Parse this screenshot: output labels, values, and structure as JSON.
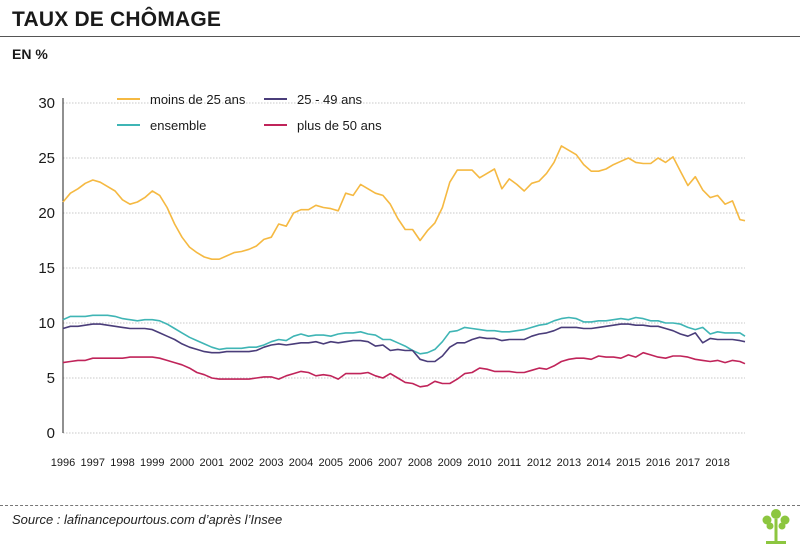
{
  "header": {
    "title": "TAUX DE CHÔMAGE",
    "unit": "EN %"
  },
  "footer": {
    "source": "Source : lafinancepourtous.com d’après l’Insee"
  },
  "colors": {
    "youth": "#f5b942",
    "ensemble": "#3fb5b5",
    "prime": "#4a3d7a",
    "senior": "#c0245a",
    "grid": "#c8c8c8",
    "logo": "#8cc63f"
  },
  "chart_data": {
    "type": "line",
    "title": "TAUX DE CHÔMAGE",
    "ylabel": "EN %",
    "xlabel": "",
    "ylim": [
      0,
      30
    ],
    "xlim": [
      1996,
      2018.92
    ],
    "yticks": [
      0,
      5,
      10,
      15,
      20,
      25,
      30
    ],
    "xticks": [
      "1996",
      "1997",
      "1998",
      "1999",
      "2000",
      "2001",
      "2002",
      "2003",
      "2004",
      "2005",
      "2006",
      "2007",
      "2008",
      "2009",
      "2010",
      "2011",
      "2012",
      "2013",
      "2014",
      "2015",
      "2016",
      "2017",
      "2018"
    ],
    "legend": "top-left",
    "series": [
      {
        "name": "moins de 25 ans",
        "color": "#f5b942",
        "x": [
          1996,
          1996.25,
          1996.5,
          1996.75,
          1997,
          1997.25,
          1997.5,
          1997.75,
          1998,
          1998.25,
          1998.5,
          1998.75,
          1999,
          1999.25,
          1999.5,
          1999.75,
          2000,
          2000.25,
          2000.5,
          2000.75,
          2001,
          2001.25,
          2001.5,
          2001.75,
          2002,
          2002.25,
          2002.5,
          2002.75,
          2003,
          2003.25,
          2003.5,
          2003.75,
          2004,
          2004.25,
          2004.5,
          2004.75,
          2005,
          2005.25,
          2005.5,
          2005.75,
          2006,
          2006.25,
          2006.5,
          2006.75,
          2007,
          2007.25,
          2007.5,
          2007.75,
          2008,
          2008.25,
          2008.5,
          2008.75,
          2009,
          2009.25,
          2009.5,
          2009.75,
          2010,
          2010.25,
          2010.5,
          2010.75,
          2011,
          2011.25,
          2011.5,
          2011.75,
          2012,
          2012.25,
          2012.5,
          2012.75,
          2013,
          2013.25,
          2013.5,
          2013.75,
          2014,
          2014.25,
          2014.5,
          2014.75,
          2015,
          2015.25,
          2015.5,
          2015.75,
          2016,
          2016.25,
          2016.5,
          2016.75,
          2017,
          2017.25,
          2017.5,
          2017.75,
          2018,
          2018.25,
          2018.5,
          2018.75,
          2018.92
        ],
        "values": [
          21.0,
          21.8,
          22.2,
          22.7,
          23.0,
          22.8,
          22.4,
          22.0,
          21.2,
          20.8,
          21.0,
          21.4,
          22.0,
          21.6,
          20.5,
          19.0,
          17.8,
          16.9,
          16.4,
          16.0,
          15.8,
          15.8,
          16.1,
          16.4,
          16.5,
          16.7,
          17.0,
          17.6,
          17.8,
          19.0,
          18.8,
          20.0,
          20.3,
          20.3,
          20.7,
          20.5,
          20.4,
          20.2,
          21.8,
          21.6,
          22.6,
          22.2,
          21.8,
          21.6,
          20.8,
          19.5,
          18.5,
          18.5,
          17.5,
          18.4,
          19.1,
          20.5,
          22.8,
          23.9,
          23.9,
          23.9,
          23.2,
          23.6,
          24.0,
          22.2,
          23.1,
          22.6,
          22.0,
          22.7,
          22.9,
          23.6,
          24.6,
          26.1,
          25.7,
          25.3,
          24.4,
          23.8,
          23.8,
          24.0,
          24.4,
          24.7,
          25.0,
          24.6,
          24.5,
          24.5,
          25.0,
          24.6,
          25.1,
          23.8,
          22.5,
          23.3,
          22.1,
          21.4,
          21.6,
          20.8,
          21.1,
          19.4,
          19.3
        ]
      },
      {
        "name": "ensemble",
        "color": "#3fb5b5",
        "x": [
          1996,
          1996.25,
          1996.5,
          1996.75,
          1997,
          1997.25,
          1997.5,
          1997.75,
          1998,
          1998.25,
          1998.5,
          1998.75,
          1999,
          1999.25,
          1999.5,
          1999.75,
          2000,
          2000.25,
          2000.5,
          2000.75,
          2001,
          2001.25,
          2001.5,
          2001.75,
          2002,
          2002.25,
          2002.5,
          2002.75,
          2003,
          2003.25,
          2003.5,
          2003.75,
          2004,
          2004.25,
          2004.5,
          2004.75,
          2005,
          2005.25,
          2005.5,
          2005.75,
          2006,
          2006.25,
          2006.5,
          2006.75,
          2007,
          2007.25,
          2007.5,
          2007.75,
          2008,
          2008.25,
          2008.5,
          2008.75,
          2009,
          2009.25,
          2009.5,
          2009.75,
          2010,
          2010.25,
          2010.5,
          2010.75,
          2011,
          2011.25,
          2011.5,
          2011.75,
          2012,
          2012.25,
          2012.5,
          2012.75,
          2013,
          2013.25,
          2013.5,
          2013.75,
          2014,
          2014.25,
          2014.5,
          2014.75,
          2015,
          2015.25,
          2015.5,
          2015.75,
          2016,
          2016.25,
          2016.5,
          2016.75,
          2017,
          2017.25,
          2017.5,
          2017.75,
          2018,
          2018.25,
          2018.5,
          2018.75,
          2018.92
        ],
        "values": [
          10.3,
          10.6,
          10.6,
          10.6,
          10.7,
          10.7,
          10.7,
          10.6,
          10.4,
          10.3,
          10.2,
          10.3,
          10.3,
          10.2,
          9.9,
          9.5,
          9.1,
          8.7,
          8.4,
          8.1,
          7.8,
          7.6,
          7.7,
          7.7,
          7.7,
          7.8,
          7.8,
          8.0,
          8.3,
          8.5,
          8.4,
          8.8,
          9.0,
          8.8,
          8.9,
          8.9,
          8.8,
          9.0,
          9.1,
          9.1,
          9.2,
          9.0,
          8.9,
          8.5,
          8.5,
          8.2,
          7.9,
          7.5,
          7.2,
          7.3,
          7.6,
          8.3,
          9.2,
          9.3,
          9.6,
          9.5,
          9.4,
          9.3,
          9.3,
          9.2,
          9.2,
          9.3,
          9.4,
          9.6,
          9.8,
          9.9,
          10.2,
          10.4,
          10.5,
          10.4,
          10.1,
          10.1,
          10.2,
          10.2,
          10.3,
          10.4,
          10.3,
          10.5,
          10.4,
          10.2,
          10.2,
          10.0,
          10.0,
          9.9,
          9.6,
          9.4,
          9.6,
          9.0,
          9.2,
          9.1,
          9.1,
          9.1,
          8.8
        ]
      },
      {
        "name": "25 - 49 ans",
        "color": "#4a3d7a",
        "x": [
          1996,
          1996.25,
          1996.5,
          1996.75,
          1997,
          1997.25,
          1997.5,
          1997.75,
          1998,
          1998.25,
          1998.5,
          1998.75,
          1999,
          1999.25,
          1999.5,
          1999.75,
          2000,
          2000.25,
          2000.5,
          2000.75,
          2001,
          2001.25,
          2001.5,
          2001.75,
          2002,
          2002.25,
          2002.5,
          2002.75,
          2003,
          2003.25,
          2003.5,
          2003.75,
          2004,
          2004.25,
          2004.5,
          2004.75,
          2005,
          2005.25,
          2005.5,
          2005.75,
          2006,
          2006.25,
          2006.5,
          2006.75,
          2007,
          2007.25,
          2007.5,
          2007.75,
          2008,
          2008.25,
          2008.5,
          2008.75,
          2009,
          2009.25,
          2009.5,
          2009.75,
          2010,
          2010.25,
          2010.5,
          2010.75,
          2011,
          2011.25,
          2011.5,
          2011.75,
          2012,
          2012.25,
          2012.5,
          2012.75,
          2013,
          2013.25,
          2013.5,
          2013.75,
          2014,
          2014.25,
          2014.5,
          2014.75,
          2015,
          2015.25,
          2015.5,
          2015.75,
          2016,
          2016.25,
          2016.5,
          2016.75,
          2017,
          2017.25,
          2017.5,
          2017.75,
          2018,
          2018.25,
          2018.5,
          2018.75,
          2018.92
        ],
        "values": [
          9.5,
          9.7,
          9.7,
          9.8,
          9.9,
          9.9,
          9.8,
          9.7,
          9.6,
          9.5,
          9.5,
          9.5,
          9.4,
          9.1,
          8.8,
          8.5,
          8.1,
          7.8,
          7.6,
          7.4,
          7.3,
          7.3,
          7.4,
          7.4,
          7.4,
          7.4,
          7.5,
          7.8,
          8.0,
          8.1,
          8.0,
          8.1,
          8.2,
          8.2,
          8.3,
          8.1,
          8.3,
          8.2,
          8.3,
          8.4,
          8.4,
          8.3,
          7.9,
          8.0,
          7.5,
          7.6,
          7.5,
          7.5,
          6.7,
          6.5,
          6.5,
          7.0,
          7.8,
          8.2,
          8.2,
          8.5,
          8.7,
          8.6,
          8.6,
          8.4,
          8.5,
          8.5,
          8.5,
          8.8,
          9.0,
          9.1,
          9.3,
          9.6,
          9.6,
          9.6,
          9.5,
          9.5,
          9.6,
          9.7,
          9.8,
          9.9,
          9.9,
          9.8,
          9.8,
          9.7,
          9.7,
          9.5,
          9.3,
          9.0,
          8.8,
          9.1,
          8.2,
          8.6,
          8.5,
          8.5,
          8.5,
          8.4,
          8.3
        ]
      },
      {
        "name": "plus de 50 ans",
        "color": "#c0245a",
        "x": [
          1996,
          1996.25,
          1996.5,
          1996.75,
          1997,
          1997.25,
          1997.5,
          1997.75,
          1998,
          1998.25,
          1998.5,
          1998.75,
          1999,
          1999.25,
          1999.5,
          1999.75,
          2000,
          2000.25,
          2000.5,
          2000.75,
          2001,
          2001.25,
          2001.5,
          2001.75,
          2002,
          2002.25,
          2002.5,
          2002.75,
          2003,
          2003.25,
          2003.5,
          2003.75,
          2004,
          2004.25,
          2004.5,
          2004.75,
          2005,
          2005.25,
          2005.5,
          2005.75,
          2006,
          2006.25,
          2006.5,
          2006.75,
          2007,
          2007.25,
          2007.5,
          2007.75,
          2008,
          2008.25,
          2008.5,
          2008.75,
          2009,
          2009.25,
          2009.5,
          2009.75,
          2010,
          2010.25,
          2010.5,
          2010.75,
          2011,
          2011.25,
          2011.5,
          2011.75,
          2012,
          2012.25,
          2012.5,
          2012.75,
          2013,
          2013.25,
          2013.5,
          2013.75,
          2014,
          2014.25,
          2014.5,
          2014.75,
          2015,
          2015.25,
          2015.5,
          2015.75,
          2016,
          2016.25,
          2016.5,
          2016.75,
          2017,
          2017.25,
          2017.5,
          2017.75,
          2018,
          2018.25,
          2018.5,
          2018.75,
          2018.92
        ],
        "values": [
          6.4,
          6.5,
          6.6,
          6.6,
          6.8,
          6.8,
          6.8,
          6.8,
          6.8,
          6.9,
          6.9,
          6.9,
          6.9,
          6.8,
          6.6,
          6.4,
          6.2,
          5.9,
          5.5,
          5.3,
          5.0,
          4.9,
          4.9,
          4.9,
          4.9,
          4.9,
          5.0,
          5.1,
          5.1,
          4.9,
          5.2,
          5.4,
          5.6,
          5.5,
          5.2,
          5.3,
          5.2,
          4.9,
          5.4,
          5.4,
          5.4,
          5.5,
          5.2,
          5.0,
          5.4,
          5.0,
          4.6,
          4.5,
          4.2,
          4.3,
          4.7,
          4.5,
          4.5,
          4.9,
          5.4,
          5.5,
          5.9,
          5.8,
          5.6,
          5.6,
          5.6,
          5.5,
          5.5,
          5.7,
          5.9,
          5.8,
          6.1,
          6.5,
          6.7,
          6.8,
          6.8,
          6.7,
          7.0,
          6.9,
          6.9,
          6.8,
          7.1,
          6.9,
          7.3,
          7.1,
          6.9,
          6.8,
          7.0,
          7.0,
          6.9,
          6.7,
          6.6,
          6.5,
          6.6,
          6.4,
          6.6,
          6.5,
          6.3
        ]
      }
    ]
  }
}
